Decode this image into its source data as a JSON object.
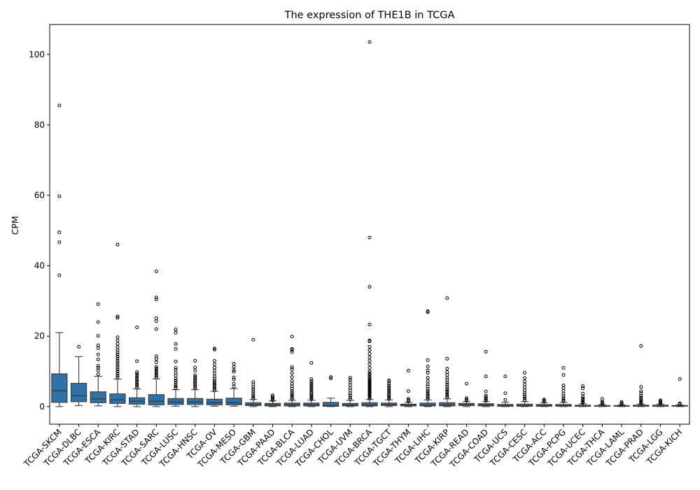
{
  "chart_data": {
    "type": "box",
    "title": "The expression of THE1B in TCGA",
    "xlabel": "",
    "ylabel": "CPM",
    "ylim": [
      -5,
      108.5
    ],
    "yticks": [
      0,
      20,
      40,
      60,
      80,
      100
    ],
    "grid": false,
    "legend": "none",
    "colors": {
      "box": "#2f72a8",
      "line": "#3a3a3a",
      "axis": "#000000",
      "flier_edge": "#000000"
    },
    "categories": [
      "TCGA-SKCM",
      "TCGA-DLBC",
      "TCGA-ESCA",
      "TCGA-KIRC",
      "TCGA-STAD",
      "TCGA-SARC",
      "TCGA-LUSC",
      "TCGA-HNSC",
      "TCGA-OV",
      "TCGA-MESO",
      "TCGA-GBM",
      "TCGA-PAAD",
      "TCGA-BLCA",
      "TCGA-LUAD",
      "TCGA-CHOL",
      "TCGA-UVM",
      "TCGA-BRCA",
      "TCGA-TGCT",
      "TCGA-THYM",
      "TCGA-LIHC",
      "TCGA-KIRP",
      "TCGA-READ",
      "TCGA-COAD",
      "TCGA-UCS",
      "TCGA-CESC",
      "TCGA-ACC",
      "TCGA-PCPG",
      "TCGA-UCEC",
      "TCGA-THCA",
      "TCGA-LAML",
      "TCGA-PRAD",
      "TCGA-LGG",
      "TCGA-KICH"
    ],
    "boxes": [
      {
        "whislo": 0,
        "q1": 1.2,
        "med": 4.5,
        "q3": 9.3,
        "whishi": 21,
        "fliers": [
          37.3,
          46.7,
          49.5,
          59.7,
          85.5
        ]
      },
      {
        "whislo": 0.3,
        "q1": 1.4,
        "med": 3.1,
        "q3": 6.6,
        "whishi": 14.2,
        "fliers": [
          17
        ]
      },
      {
        "whislo": 0.2,
        "q1": 1.1,
        "med": 2.2,
        "q3": 4.2,
        "whishi": 8.6,
        "fliers": [
          9.2,
          10.3,
          11,
          11.6,
          13.4,
          14.8,
          16.6,
          17.4,
          20.1,
          24,
          29.1
        ]
      },
      {
        "whislo": 0,
        "q1": 0.9,
        "med": 1.9,
        "q3": 3.6,
        "whishi": 7.8,
        "fliers": [
          8.3,
          8.8,
          9.4,
          10,
          10.6,
          11.2,
          11.8,
          12.4,
          13,
          13.6,
          14.2,
          14.8,
          15.4,
          16.1,
          16.9,
          17.8,
          18.8,
          19.7,
          25.2,
          25.6,
          46
        ]
      },
      {
        "whislo": 0,
        "q1": 0.7,
        "med": 1.5,
        "q3": 2.5,
        "whishi": 5,
        "fliers": [
          5.4,
          5.9,
          6.3,
          6.8,
          7.3,
          7.8,
          8.3,
          8.8,
          9.3,
          9.8,
          12.9,
          22.5
        ]
      },
      {
        "whislo": 0,
        "q1": 0.5,
        "med": 1.5,
        "q3": 3.4,
        "whishi": 7.9,
        "fliers": [
          8.3,
          8.8,
          9.3,
          9.8,
          10.3,
          10.8,
          11.3,
          12.6,
          13.5,
          14.3,
          22,
          24.3,
          25.1,
          30.4,
          31,
          38.4
        ]
      },
      {
        "whislo": 0.1,
        "q1": 0.6,
        "med": 1.3,
        "q3": 2.3,
        "whishi": 4.8,
        "fliers": [
          5.2,
          5.7,
          6.2,
          6.8,
          7.4,
          8,
          8.8,
          9.6,
          10.4,
          11,
          12.8,
          16.4,
          17.8,
          21,
          21.9
        ]
      },
      {
        "whislo": 0,
        "q1": 0.6,
        "med": 1.3,
        "q3": 2.3,
        "whishi": 4.8,
        "fliers": [
          5.2,
          5.6,
          6,
          6.4,
          6.8,
          7.2,
          7.6,
          8,
          8.4,
          8.9,
          10.2,
          11.1,
          13
        ]
      },
      {
        "whislo": 0.1,
        "q1": 0.5,
        "med": 1.1,
        "q3": 2.1,
        "whishi": 4.3,
        "fliers": [
          4.7,
          5.1,
          5.5,
          5.9,
          6.3,
          6.8,
          7.3,
          7.9,
          8.6,
          9.4,
          10.2,
          11.1,
          12,
          13,
          16.2,
          16.5
        ]
      },
      {
        "whislo": 0.1,
        "q1": 0.5,
        "med": 1.1,
        "q3": 2.4,
        "whishi": 5.1,
        "fliers": [
          5.7,
          6.5,
          7.7,
          8.3,
          9.9,
          10.4,
          11.3,
          12.2
        ]
      },
      {
        "whislo": 0,
        "q1": 0.3,
        "med": 0.6,
        "q3": 1.1,
        "whishi": 2,
        "fliers": [
          2.3,
          2.7,
          3.2,
          3.8,
          4.4,
          5,
          5.6,
          6.3,
          7,
          19
        ]
      },
      {
        "whislo": 0,
        "q1": 0.2,
        "med": 0.5,
        "q3": 0.9,
        "whishi": 1.6,
        "fliers": [
          1.8,
          2.1,
          2.4,
          2.8,
          3.2
        ]
      },
      {
        "whislo": 0,
        "q1": 0.2,
        "med": 0.5,
        "q3": 1,
        "whishi": 1.8,
        "fliers": [
          2.1,
          2.5,
          2.9,
          3.4,
          3.9,
          4.5,
          5.1,
          5.8,
          6.5,
          7.3,
          8.4,
          9.5,
          10.6,
          11.2,
          15.5,
          16.1,
          16.4,
          19.9
        ]
      },
      {
        "whislo": 0,
        "q1": 0.2,
        "med": 0.5,
        "q3": 1,
        "whishi": 1.8,
        "fliers": [
          2.1,
          2.4,
          2.7,
          3,
          3.4,
          3.8,
          4.2,
          4.7,
          5.2,
          5.7,
          6.2,
          6.7,
          7.2,
          7.8,
          12.4
        ]
      },
      {
        "whislo": 0,
        "q1": 0.1,
        "med": 0.3,
        "q3": 1.2,
        "whishi": 2.4,
        "fliers": [
          8,
          8.4
        ]
      },
      {
        "whislo": 0,
        "q1": 0.2,
        "med": 0.5,
        "q3": 0.9,
        "whishi": 1.8,
        "fliers": [
          2.1,
          2.6,
          3.2,
          3.8,
          4.6,
          5.3,
          6.1,
          6.9,
          7.6,
          8.2
        ]
      },
      {
        "whislo": 0,
        "q1": 0.2,
        "med": 0.5,
        "q3": 1.1,
        "whishi": 2,
        "fliers": [
          2.3,
          2.6,
          2.9,
          3.2,
          3.5,
          3.8,
          4.1,
          4.4,
          4.7,
          5,
          5.3,
          5.6,
          5.9,
          6.2,
          6.5,
          6.8,
          7.1,
          7.4,
          7.7,
          8,
          8.5,
          9,
          9.5,
          10,
          11,
          12,
          13,
          14,
          15,
          16,
          17,
          18.5,
          18.8,
          23.3,
          34,
          48,
          103.5
        ]
      },
      {
        "whislo": 0,
        "q1": 0.3,
        "med": 0.6,
        "q3": 1,
        "whishi": 1.9,
        "fliers": [
          2.2,
          2.5,
          2.8,
          3.2,
          3.6,
          4,
          4.5,
          5,
          5.5,
          6,
          6.6,
          7.2,
          7.4
        ]
      },
      {
        "whislo": 0,
        "q1": 0.2,
        "med": 0.4,
        "q3": 0.7,
        "whishi": 1.2,
        "fliers": [
          1.5,
          1.8,
          2.2,
          4.4,
          10.2
        ]
      },
      {
        "whislo": 0,
        "q1": 0.2,
        "med": 0.4,
        "q3": 1,
        "whishi": 1.9,
        "fliers": [
          2.2,
          2.6,
          3,
          3.4,
          3.9,
          4.4,
          5,
          5.7,
          6.4,
          7.2,
          8.2,
          9.6,
          10.3,
          11.4,
          13.2,
          26.8,
          27.1
        ]
      },
      {
        "whislo": 0,
        "q1": 0.2,
        "med": 0.5,
        "q3": 1.1,
        "whishi": 2.2,
        "fliers": [
          2.6,
          3,
          3.5,
          4,
          4.5,
          5,
          5.6,
          6.2,
          6.8,
          7.5,
          8.2,
          9,
          9.8,
          10.8,
          13.6,
          30.8
        ]
      },
      {
        "whislo": 0,
        "q1": 0.3,
        "med": 0.6,
        "q3": 0.9,
        "whishi": 1.4,
        "fliers": [
          1.7,
          2,
          2.4,
          6.5
        ]
      },
      {
        "whislo": 0,
        "q1": 0.2,
        "med": 0.5,
        "q3": 0.8,
        "whishi": 1.4,
        "fliers": [
          1.7,
          2,
          2.3,
          2.7,
          3.1,
          4.3,
          8.6,
          15.6
        ]
      },
      {
        "whislo": 0,
        "q1": 0.1,
        "med": 0.3,
        "q3": 0.6,
        "whishi": 1.2,
        "fliers": [
          1.9,
          3.8,
          8.6
        ]
      },
      {
        "whislo": 0,
        "q1": 0.1,
        "med": 0.3,
        "q3": 0.7,
        "whishi": 1.4,
        "fliers": [
          1.8,
          2.3,
          2.8,
          3.4,
          4,
          4.7,
          5.5,
          6.3,
          7.2,
          8.1,
          9.6
        ]
      },
      {
        "whislo": 0,
        "q1": 0.1,
        "med": 0.3,
        "q3": 0.6,
        "whishi": 1.1,
        "fliers": [
          1.4,
          1.7,
          2
        ]
      },
      {
        "whislo": 0,
        "q1": 0.1,
        "med": 0.3,
        "q3": 0.6,
        "whishi": 1.2,
        "fliers": [
          1.5,
          1.9,
          2.4,
          3,
          3.7,
          4.5,
          5.3,
          6,
          9,
          11
        ]
      },
      {
        "whislo": 0,
        "q1": 0.1,
        "med": 0.2,
        "q3": 0.4,
        "whishi": 0.8,
        "fliers": [
          1,
          1.3,
          1.6,
          1.9,
          2.3,
          2.8,
          3.7,
          5.2,
          5.8
        ]
      },
      {
        "whislo": 0,
        "q1": 0.1,
        "med": 0.2,
        "q3": 0.3,
        "whishi": 0.6,
        "fliers": [
          0.8,
          1.1,
          1.4,
          2.2
        ]
      },
      {
        "whislo": 0,
        "q1": 0.1,
        "med": 0.2,
        "q3": 0.3,
        "whishi": 0.5,
        "fliers": [
          0.7,
          1,
          1.3
        ]
      },
      {
        "whislo": 0,
        "q1": 0.1,
        "med": 0.2,
        "q3": 0.4,
        "whishi": 0.7,
        "fliers": [
          0.9,
          1.2,
          1.5,
          1.8,
          2.2,
          2.6,
          3.1,
          3.8,
          4.4,
          5.6,
          17.2
        ]
      },
      {
        "whislo": 0,
        "q1": 0.1,
        "med": 0.2,
        "q3": 0.4,
        "whishi": 0.7,
        "fliers": [
          0.9,
          1.2,
          1.5,
          1.8
        ]
      },
      {
        "whislo": 0,
        "q1": 0.1,
        "med": 0.2,
        "q3": 0.3,
        "whishi": 0.5,
        "fliers": [
          0.7,
          0.9,
          7.8
        ]
      }
    ]
  }
}
